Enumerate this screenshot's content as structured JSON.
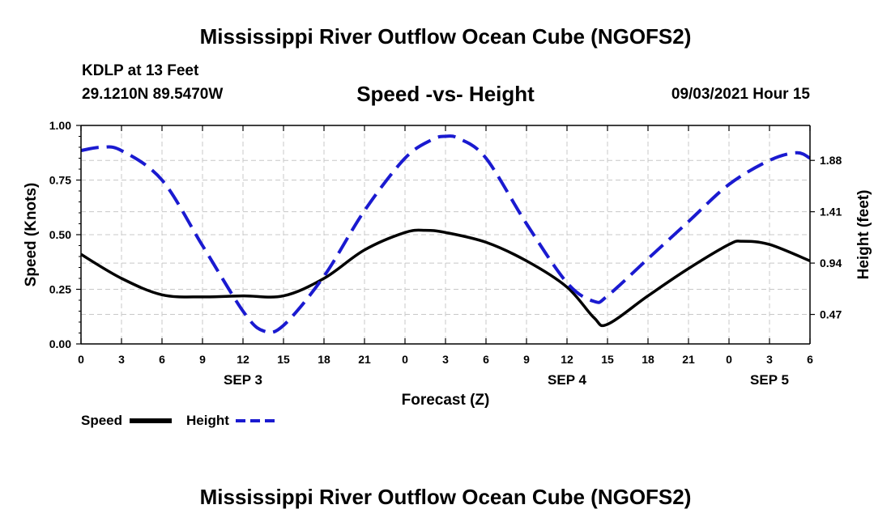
{
  "header": {
    "title": "Mississippi River Outflow Ocean Cube (NGOFS2)",
    "station": "KDLP at 13 Feet",
    "coords": "29.1210N  89.5470W",
    "subtitle": "Speed -vs- Height",
    "datetime": "09/03/2021 Hour 15"
  },
  "footer": {
    "title": "Mississippi River Outflow Ocean Cube (NGOFS2)"
  },
  "colors": {
    "speed": "#000000",
    "height": "#1a1ad0",
    "grid": "#c8c8c8"
  },
  "chart_data": {
    "type": "line",
    "title": "Speed -vs- Height",
    "xlabel": "Forecast (Z)",
    "ylabel": "Speed (Knots)",
    "y2label": "Height (feet)",
    "xlim": [
      0,
      54
    ],
    "ylim": [
      0,
      1
    ],
    "y2lim": [
      0.2,
      2.2
    ],
    "grid": true,
    "legend_position": "bottom-left",
    "x_ticks": [
      0,
      3,
      6,
      9,
      12,
      15,
      18,
      21,
      24,
      27,
      30,
      33,
      36,
      39,
      42,
      45,
      48,
      51,
      54
    ],
    "x_tick_labels": [
      "0",
      "3",
      "6",
      "9",
      "12",
      "15",
      "18",
      "21",
      "0",
      "3",
      "6",
      "9",
      "12",
      "15",
      "18",
      "21",
      "0",
      "3",
      "6"
    ],
    "day_labels": [
      {
        "x": 12,
        "label": "SEP 3"
      },
      {
        "x": 36,
        "label": "SEP 4"
      },
      {
        "x": 51,
        "label": "SEP 5"
      }
    ],
    "y_ticks": [
      0,
      0.25,
      0.5,
      0.75,
      1
    ],
    "y_tick_labels": [
      "0.00",
      "0.25",
      "0.50",
      "0.75",
      "1.00"
    ],
    "y2_ticks": [
      0.47,
      0.94,
      1.41,
      1.88
    ],
    "y2_tick_labels": [
      "0.47",
      "0.94",
      "1.41",
      "1.88"
    ],
    "series": [
      {
        "name": "Speed",
        "axis": "left",
        "style": "solid",
        "x": [
          0,
          3,
          6,
          9,
          12,
          15,
          18,
          21,
          24,
          25.5,
          27,
          30,
          33,
          36,
          38,
          39,
          42,
          45,
          48,
          49,
          51,
          54
        ],
        "values": [
          0.41,
          0.3,
          0.225,
          0.215,
          0.22,
          0.22,
          0.3,
          0.43,
          0.51,
          0.52,
          0.51,
          0.465,
          0.38,
          0.26,
          0.12,
          0.09,
          0.22,
          0.345,
          0.455,
          0.47,
          0.455,
          0.38
        ]
      },
      {
        "name": "Height",
        "axis": "right",
        "style": "dashed",
        "x": [
          0,
          1.5,
          3,
          6,
          9,
          12,
          13.5,
          15,
          18,
          21,
          24,
          26,
          27,
          28,
          30,
          33,
          36,
          38,
          39,
          42,
          45,
          48,
          51,
          53,
          54
        ],
        "values": [
          1.97,
          2.0,
          1.97,
          1.7,
          1.1,
          0.5,
          0.32,
          0.37,
          0.82,
          1.42,
          1.9,
          2.07,
          2.1,
          2.08,
          1.9,
          1.3,
          0.76,
          0.59,
          0.64,
          0.98,
          1.32,
          1.66,
          1.88,
          1.95,
          1.9
        ]
      }
    ]
  }
}
